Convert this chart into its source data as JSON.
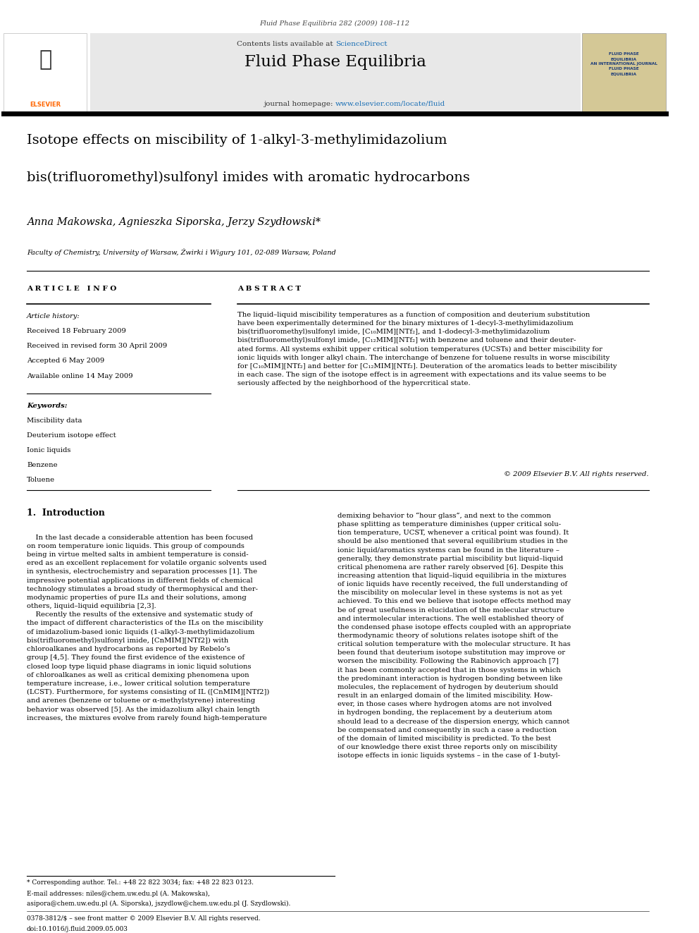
{
  "page_width": 9.92,
  "page_height": 13.23,
  "background_color": "#ffffff",
  "journal_line": "Fluid Phase Equilibria 282 (2009) 108–112",
  "contents_line": "Contents lists available at ScienceDirect",
  "journal_name": "Fluid Phase Equilibria",
  "journal_homepage": "journal homepage: www.elsevier.com/locate/fluid",
  "title_line1": "Isotope effects on miscibility of 1-alkyl-3-methylimidazolium",
  "title_line2": "bis(trifluoromethyl)sulfonyl imides with aromatic hydrocarbons",
  "authors": "Anna Makowska, Agnieszka Siporska, Jerzy Szydłowski*",
  "affiliation": "Faculty of Chemistry, University of Warsaw, Żwirki i Wigury 101, 02-089 Warsaw, Poland",
  "article_info_label": "A R T I C L E   I N F O",
  "abstract_label": "A B S T R A C T",
  "article_history_label": "Article history:",
  "received": "Received 18 February 2009",
  "revised": "Received in revised form 30 April 2009",
  "accepted": "Accepted 6 May 2009",
  "available": "Available online 14 May 2009",
  "keywords_label": "Keywords:",
  "keywords": [
    "Miscibility data",
    "Deuterium isotope effect",
    "Ionic liquids",
    "Benzene",
    "Toluene"
  ],
  "abstract_wrapped": "The liquid–liquid miscibility temperatures as a function of composition and deuterium substitution\nhave been experimentally determined for the binary mixtures of 1-decyl-3-methylimidazolium\nbis(trifluoromethyl)sulfonyl imide, [C₁₀MIM][NTf₂], and 1-dodecyl-3-methylimidazolium\nbis(trifluoromethyl)sulfonyl imide, [C₁₂MIM][NTf₂] with benzene and toluene and their deuter-\nated forms. All systems exhibit upper critical solution temperatures (UCSTs) and better miscibility for\nionic liquids with longer alkyl chain. The interchange of benzene for toluene results in worse miscibility\nfor [C₁₀MIM][NTf₂] and better for [C₁₂MIM][NTf₂]. Deuteration of the aromatics leads to better miscibility\nin each case. The sign of the isotope effect is in agreement with expectations and its value seems to be\nseriously affected by the neighborhood of the hypercritical state.",
  "copyright": "© 2009 Elsevier B.V. All rights reserved.",
  "intro_heading": "1.  Introduction",
  "intro_left": "    In the last decade a considerable attention has been focused\non room temperature ionic liquids. This group of compounds\nbeing in virtue melted salts in ambient temperature is consid-\nered as an excellent replacement for volatile organic solvents used\nin synthesis, electrochemistry and separation processes [1]. The\nimpressive potential applications in different fields of chemical\ntechnology stimulates a broad study of thermophysical and ther-\nmodynamic properties of pure ILs and their solutions, among\nothers, liquid–liquid equilibria [2,3].\n    Recently the results of the extensive and systematic study of\nthe impact of different characteristics of the ILs on the miscibility\nof imidazolium-based ionic liquids (1-alkyl-3-methylimidazolium\nbis(trifluoromethyl)sulfonyl imide, [CnMIM][NTf2]) with\nchloroalkanes and hydrocarbons as reported by Rebelo’s\ngroup [4,5]. They found the first evidence of the existence of\nclosed loop type liquid phase diagrams in ionic liquid solutions\nof chloroalkanes as well as critical demixing phenomena upon\ntemperature increase, i.e., lower critical solution temperature\n(LCST). Furthermore, for systems consisting of IL ([CnMIM][NTf2])\nand arenes (benzene or toluene or α-methylstyrene) interesting\nbehavior was observed [5]. As the imidazolium alkyl chain length\nincreases, the mixtures evolve from rarely found high-temperature",
  "intro_right": "demixing behavior to “hour glass”, and next to the common\nphase splitting as temperature diminishes (upper critical solu-\ntion temperature, UCST, whenever a critical point was found). It\nshould be also mentioned that several equilibrium studies in the\nionic liquid/aromatics systems can be found in the literature –\ngenerally, they demonstrate partial miscibility but liquid–liquid\ncritical phenomena are rather rarely observed [6]. Despite this\nincreasing attention that liquid–liquid equilibria in the mixtures\nof ionic liquids have recently received, the full understanding of\nthe miscibility on molecular level in these systems is not as yet\nachieved. To this end we believe that isotope effects method may\nbe of great usefulness in elucidation of the molecular structure\nand intermolecular interactions. The well established theory of\nthe condensed phase isotope effects coupled with an appropriate\nthermodynamic theory of solutions relates isotope shift of the\ncritical solution temperature with the molecular structure. It has\nbeen found that deuterium isotope substitution may improve or\nworsen the miscibility. Following the Rabinovich approach [7]\nit has been commonly accepted that in those systems in which\nthe predominant interaction is hydrogen bonding between like\nmolecules, the replacement of hydrogen by deuterium should\nresult in an enlarged domain of the limited miscibility. How-\never, in those cases where hydrogen atoms are not involved\nin hydrogen bonding, the replacement by a deuterium atom\nshould lead to a decrease of the dispersion energy, which cannot\nbe compensated and consequently in such a case a reduction\nof the domain of limited miscibility is predicted. To the best\nof our knowledge there exist three reports only on miscibility\nisotope effects in ionic liquids systems – in the case of 1-butyl-",
  "footnote_star": "* Corresponding author. Tel.: +48 22 822 3034; fax: +48 22 823 0123.",
  "footnote_email": "E-mail addresses: niles@chem.uw.edu.pl (A. Makowska),",
  "footnote_email2": "asipora@chem.uw.edu.pl (A. Siporska), jszydlow@chem.uw.edu.pl (J. Szydlowski).",
  "footnote_issn": "0378-3812/$ – see front matter © 2009 Elsevier B.V. All rights reserved.",
  "footnote_doi": "doi:10.1016/j.fluid.2009.05.003",
  "link_color": "#1a6fb5"
}
